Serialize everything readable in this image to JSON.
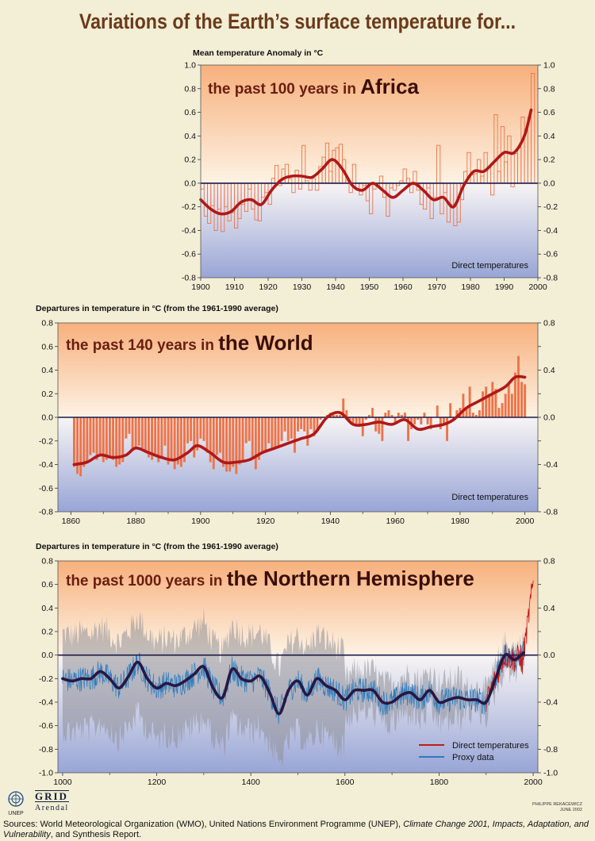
{
  "title": "Variations of the Earth’s surface temperature for...",
  "colors": {
    "background": "#F3EED6",
    "warm": "#F9C497",
    "cool": "#A8B2DA",
    "bar": "#EE7348",
    "smooth": "#B01818",
    "proxy": "#2B7BC0",
    "band": "#9B9BA3",
    "nh_smooth": "#2A1740",
    "baseline": "#1A1A4A"
  },
  "chart_data": [
    {
      "id": "africa",
      "type": "bar",
      "bar_style": "outline-steps",
      "ylabel": "Mean temperature Anomaly in °C",
      "subtitle_lead": "the past 100 years in ",
      "subtitle_emph": "Africa",
      "note": "Direct temperatures",
      "xlim": [
        1900,
        2000
      ],
      "ylim": [
        -0.8,
        1.0
      ],
      "xticks": [
        1900,
        1910,
        1920,
        1930,
        1940,
        1950,
        1960,
        1970,
        1980,
        1990,
        2000
      ],
      "yticks": [
        -0.8,
        -0.6,
        -0.4,
        -0.2,
        0.0,
        0.2,
        0.4,
        0.6,
        0.8,
        1.0
      ],
      "ytick_labels": [
        "-0.8",
        "-0.6",
        "-0.4",
        "-0.2",
        "0.0",
        "0.2",
        "0.4",
        "0.6",
        "0.8",
        "1.0"
      ],
      "right_ticks": true,
      "x": [
        1900,
        1901,
        1902,
        1903,
        1904,
        1905,
        1906,
        1907,
        1908,
        1909,
        1910,
        1911,
        1912,
        1913,
        1914,
        1915,
        1916,
        1917,
        1918,
        1919,
        1920,
        1921,
        1922,
        1923,
        1924,
        1925,
        1926,
        1927,
        1928,
        1929,
        1930,
        1931,
        1932,
        1933,
        1934,
        1935,
        1936,
        1937,
        1938,
        1939,
        1940,
        1941,
        1942,
        1943,
        1944,
        1945,
        1946,
        1947,
        1948,
        1949,
        1950,
        1951,
        1952,
        1953,
        1954,
        1955,
        1956,
        1957,
        1958,
        1959,
        1960,
        1961,
        1962,
        1963,
        1964,
        1965,
        1966,
        1967,
        1968,
        1969,
        1970,
        1971,
        1972,
        1973,
        1974,
        1975,
        1976,
        1977,
        1978,
        1979,
        1980,
        1981,
        1982,
        1983,
        1984,
        1985,
        1986,
        1987,
        1988,
        1989,
        1990,
        1991,
        1992,
        1993,
        1994,
        1995,
        1996,
        1997,
        1998
      ],
      "values": [
        -0.05,
        -0.28,
        -0.34,
        -0.19,
        -0.4,
        -0.22,
        -0.41,
        -0.2,
        -0.32,
        -0.25,
        -0.38,
        -0.3,
        -0.18,
        -0.24,
        -0.05,
        -0.22,
        -0.31,
        -0.32,
        -0.12,
        -0.08,
        -0.18,
        0.04,
        0.15,
        -0.02,
        0.12,
        0.16,
        0.04,
        -0.08,
        0.11,
        -0.05,
        0.32,
        0.02,
        -0.06,
        0.04,
        -0.06,
        0.14,
        0.22,
        0.34,
        0.1,
        0.28,
        0.3,
        0.33,
        0.2,
        0.02,
        -0.08,
        0.16,
        -0.06,
        -0.1,
        -0.02,
        -0.15,
        -0.26,
        -0.05,
        -0.02,
        0.06,
        -0.12,
        -0.28,
        -0.04,
        -0.06,
        -0.02,
        0.02,
        0.12,
        0.04,
        -0.08,
        0.1,
        -0.06,
        -0.18,
        -0.22,
        -0.04,
        -0.3,
        -0.12,
        0.32,
        -0.26,
        -0.08,
        -0.33,
        -0.18,
        -0.36,
        -0.33,
        -0.14,
        0.1,
        0.26,
        0.07,
        0.08,
        0.2,
        0.06,
        0.26,
        0.14,
        -0.1,
        0.58,
        0.1,
        0.48,
        0.18,
        0.4,
        -0.03,
        0.25,
        0.3,
        0.56,
        0.46,
        0.56,
        0.93
      ],
      "smooth": {
        "x": [
          1900,
          1903,
          1906,
          1909,
          1912,
          1915,
          1918,
          1921,
          1924,
          1927,
          1930,
          1933,
          1936,
          1939,
          1942,
          1945,
          1948,
          1951,
          1954,
          1957,
          1960,
          1963,
          1966,
          1969,
          1972,
          1975,
          1978,
          1981,
          1984,
          1987,
          1990,
          1993,
          1996,
          1998
        ],
        "y": [
          -0.14,
          -0.22,
          -0.26,
          -0.24,
          -0.16,
          -0.14,
          -0.18,
          -0.06,
          0.03,
          0.06,
          0.06,
          0.05,
          0.12,
          0.2,
          0.12,
          -0.02,
          -0.06,
          0.0,
          -0.06,
          -0.12,
          -0.06,
          0.0,
          -0.06,
          -0.14,
          -0.12,
          -0.2,
          -0.02,
          0.1,
          0.1,
          0.18,
          0.26,
          0.26,
          0.4,
          0.62
        ]
      }
    },
    {
      "id": "world",
      "type": "bar",
      "bar_style": "filled",
      "ylabel": "Departures in temperature in °C (from the 1961-1990 average)",
      "subtitle_lead": "the past 140 years in ",
      "subtitle_emph": "the World",
      "note": "Direct temperatures",
      "xlim": [
        1856,
        2004
      ],
      "ylim": [
        -0.8,
        0.8
      ],
      "xticks": [
        1860,
        1880,
        1900,
        1920,
        1940,
        1960,
        1980,
        2000
      ],
      "yticks": [
        -0.8,
        -0.6,
        -0.4,
        -0.2,
        0.0,
        0.2,
        0.4,
        0.6,
        0.8
      ],
      "ytick_labels": [
        "-0.8",
        "-0.6",
        "-0.4",
        "-0.2",
        "0.0",
        "0.2",
        "0.4",
        "0.6",
        "0.8"
      ],
      "right_ticks": true,
      "right_ytick_values": [
        -0.8,
        -0.4,
        0.0,
        0.4,
        0.8
      ],
      "x": [
        1861,
        1862,
        1863,
        1864,
        1865,
        1866,
        1867,
        1868,
        1869,
        1870,
        1871,
        1872,
        1873,
        1874,
        1875,
        1876,
        1877,
        1878,
        1879,
        1880,
        1881,
        1882,
        1883,
        1884,
        1885,
        1886,
        1887,
        1888,
        1889,
        1890,
        1891,
        1892,
        1893,
        1894,
        1895,
        1896,
        1897,
        1898,
        1899,
        1900,
        1901,
        1902,
        1903,
        1904,
        1905,
        1906,
        1907,
        1908,
        1909,
        1910,
        1911,
        1912,
        1913,
        1914,
        1915,
        1916,
        1917,
        1918,
        1919,
        1920,
        1921,
        1922,
        1923,
        1924,
        1925,
        1926,
        1927,
        1928,
        1929,
        1930,
        1931,
        1932,
        1933,
        1934,
        1935,
        1936,
        1937,
        1938,
        1939,
        1940,
        1941,
        1942,
        1943,
        1944,
        1945,
        1946,
        1947,
        1948,
        1949,
        1950,
        1951,
        1952,
        1953,
        1954,
        1955,
        1956,
        1957,
        1958,
        1959,
        1960,
        1961,
        1962,
        1963,
        1964,
        1965,
        1966,
        1967,
        1968,
        1969,
        1970,
        1971,
        1972,
        1973,
        1974,
        1975,
        1976,
        1977,
        1978,
        1979,
        1980,
        1981,
        1982,
        1983,
        1984,
        1985,
        1986,
        1987,
        1988,
        1989,
        1990,
        1991,
        1992,
        1993,
        1994,
        1995,
        1996,
        1997,
        1998,
        1999,
        2000
      ],
      "values": [
        -0.42,
        -0.48,
        -0.5,
        -0.42,
        -0.38,
        -0.32,
        -0.3,
        -0.36,
        -0.32,
        -0.38,
        -0.36,
        -0.34,
        -0.36,
        -0.42,
        -0.4,
        -0.38,
        -0.18,
        -0.14,
        -0.28,
        -0.26,
        -0.24,
        -0.26,
        -0.3,
        -0.34,
        -0.36,
        -0.32,
        -0.38,
        -0.34,
        -0.24,
        -0.4,
        -0.36,
        -0.44,
        -0.4,
        -0.42,
        -0.38,
        -0.22,
        -0.2,
        -0.34,
        -0.28,
        -0.18,
        -0.2,
        -0.3,
        -0.38,
        -0.44,
        -0.32,
        -0.3,
        -0.42,
        -0.46,
        -0.46,
        -0.42,
        -0.48,
        -0.4,
        -0.38,
        -0.22,
        -0.2,
        -0.34,
        -0.44,
        -0.36,
        -0.3,
        -0.28,
        -0.22,
        -0.28,
        -0.26,
        -0.26,
        -0.2,
        -0.12,
        -0.2,
        -0.18,
        -0.3,
        -0.12,
        -0.1,
        -0.12,
        -0.24,
        -0.1,
        -0.16,
        -0.12,
        -0.02,
        0.0,
        0.02,
        0.04,
        0.02,
        0.02,
        0.02,
        0.16,
        0.06,
        -0.04,
        -0.06,
        -0.06,
        -0.08,
        -0.16,
        -0.02,
        0.02,
        0.08,
        -0.12,
        -0.14,
        -0.2,
        0.04,
        0.06,
        0.02,
        -0.04,
        0.04,
        0.02,
        0.04,
        -0.2,
        -0.1,
        -0.06,
        -0.02,
        -0.06,
        0.04,
        -0.06,
        -0.1,
        0.0,
        0.1,
        -0.1,
        -0.06,
        -0.2,
        0.12,
        -0.02,
        0.06,
        0.08,
        0.2,
        0.08,
        0.26,
        0.04,
        0.02,
        0.06,
        0.22,
        0.26,
        0.2,
        0.3,
        0.24,
        0.08,
        0.12,
        0.2,
        0.28,
        0.2,
        0.38,
        0.52,
        0.3,
        0.28
      ],
      "smooth": {
        "x": [
          1861,
          1865,
          1869,
          1873,
          1877,
          1880,
          1884,
          1888,
          1892,
          1896,
          1899,
          1903,
          1907,
          1911,
          1915,
          1919,
          1923,
          1927,
          1931,
          1935,
          1939,
          1943,
          1947,
          1951,
          1955,
          1959,
          1963,
          1967,
          1971,
          1975,
          1978,
          1982,
          1986,
          1990,
          1994,
          1997,
          2000
        ],
        "y": [
          -0.4,
          -0.38,
          -0.32,
          -0.34,
          -0.32,
          -0.26,
          -0.3,
          -0.34,
          -0.36,
          -0.3,
          -0.24,
          -0.3,
          -0.38,
          -0.38,
          -0.36,
          -0.3,
          -0.26,
          -0.22,
          -0.18,
          -0.14,
          0.0,
          0.04,
          -0.06,
          -0.06,
          -0.04,
          -0.06,
          -0.02,
          -0.1,
          -0.08,
          -0.06,
          -0.02,
          0.08,
          0.14,
          0.2,
          0.26,
          0.34,
          0.34
        ]
      }
    },
    {
      "id": "northern-hemisphere",
      "type": "line",
      "ylabel": "Departures in temperature in °C (from the 1961-1990 average)",
      "subtitle_lead": "the past 1000 years in ",
      "subtitle_emph": "the Northern Hemisphere",
      "xlim": [
        990,
        2010
      ],
      "ylim": [
        -1.0,
        0.8
      ],
      "xticks": [
        1000,
        1200,
        1400,
        1600,
        1800,
        2000
      ],
      "yticks": [
        -1.0,
        -0.8,
        -0.6,
        -0.4,
        -0.2,
        0.0,
        0.2,
        0.4,
        0.6,
        0.8
      ],
      "ytick_labels": [
        "-1.0",
        "-0.8",
        "-0.6",
        "-0.4",
        "-0.2",
        "0.0",
        "0.2",
        "0.4",
        "0.6",
        "0.8"
      ],
      "right_ticks": true,
      "right_ytick_values": [
        -1.0,
        -0.8,
        -0.4,
        0.0,
        0.4,
        0.8
      ],
      "legend": [
        {
          "name": "Direct temperatures",
          "color": "#C21A1A"
        },
        {
          "name": "Proxy data",
          "color": "#2B7BC0"
        }
      ],
      "legend_position": "bottom-right",
      "smooth": {
        "x": [
          1000,
          1020,
          1040,
          1060,
          1080,
          1100,
          1120,
          1140,
          1160,
          1180,
          1200,
          1220,
          1240,
          1260,
          1280,
          1300,
          1320,
          1340,
          1360,
          1380,
          1400,
          1420,
          1440,
          1460,
          1480,
          1500,
          1520,
          1540,
          1560,
          1580,
          1600,
          1620,
          1640,
          1660,
          1680,
          1700,
          1720,
          1740,
          1760,
          1780,
          1800,
          1820,
          1840,
          1860,
          1880,
          1900,
          1920,
          1940,
          1960,
          1980
        ],
        "y": [
          -0.2,
          -0.22,
          -0.2,
          -0.2,
          -0.14,
          -0.2,
          -0.28,
          -0.18,
          -0.06,
          -0.2,
          -0.28,
          -0.24,
          -0.26,
          -0.22,
          -0.16,
          -0.1,
          -0.28,
          -0.36,
          -0.12,
          -0.2,
          -0.22,
          -0.18,
          -0.32,
          -0.5,
          -0.3,
          -0.22,
          -0.34,
          -0.2,
          -0.26,
          -0.3,
          -0.38,
          -0.3,
          -0.3,
          -0.3,
          -0.4,
          -0.4,
          -0.34,
          -0.32,
          -0.38,
          -0.3,
          -0.4,
          -0.38,
          -0.36,
          -0.38,
          -0.38,
          -0.4,
          -0.2,
          0.0,
          -0.04,
          0.02
        ]
      },
      "proxy_range": [
        1000,
        1980
      ],
      "direct_range": [
        1900,
        2000
      ],
      "uncertainty_band_range": [
        1000,
        1600
      ]
    }
  ],
  "logos": {
    "unep": "UNEP",
    "grid": "GRID",
    "arendal": "Arendal"
  },
  "credit": {
    "line1": "PHILIPPE REKACEWICZ",
    "line2": "JUNE 2002"
  },
  "sources": {
    "prefix": "Sources: World Meteorological Organization (WMO), United Nations Environment Programme (UNEP), ",
    "italic": "Climate Change 2001, Impacts, Adaptation, and Vulnerability",
    "suffix": ", and Synthesis Report."
  }
}
